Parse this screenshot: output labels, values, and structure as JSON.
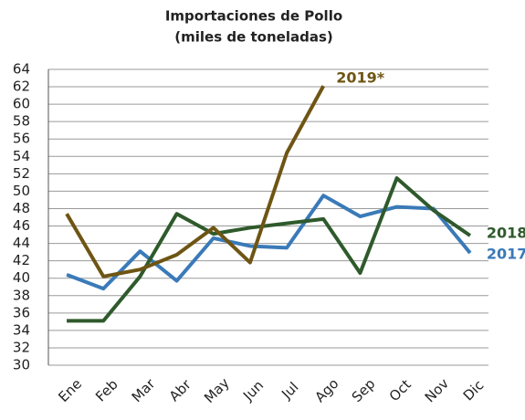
{
  "chart_data": {
    "type": "line",
    "title": "Importaciones de Pollo",
    "subtitle": "(miles de toneladas)",
    "categories": [
      "Ene",
      "Feb",
      "Mar",
      "Abr",
      "May",
      "Jun",
      "Jul",
      "Ago",
      "Sep",
      "Oct",
      "Nov",
      "Dic"
    ],
    "series": [
      {
        "name": "2017",
        "color": "#3a7ab8",
        "values": [
          40.4,
          38.8,
          43.1,
          39.7,
          44.6,
          43.7,
          43.5,
          49.5,
          47.1,
          48.2,
          48.0,
          42.9
        ]
      },
      {
        "name": "2018",
        "color": "#2f5a2c",
        "values": [
          35.1,
          35.1,
          40.2,
          47.4,
          45.1,
          45.8,
          46.3,
          46.8,
          40.6,
          51.5,
          47.8,
          44.9
        ]
      },
      {
        "name": "2019*",
        "color": "#6e5514",
        "values": [
          47.4,
          40.2,
          41.0,
          42.7,
          45.8,
          41.8,
          54.4,
          62.1,
          null,
          null,
          null,
          null
        ]
      }
    ],
    "ylim": [
      30,
      64
    ],
    "yticks": [
      30,
      32,
      34,
      36,
      38,
      40,
      42,
      44,
      46,
      48,
      50,
      52,
      54,
      56,
      58,
      60,
      62,
      64
    ],
    "grid": true
  }
}
